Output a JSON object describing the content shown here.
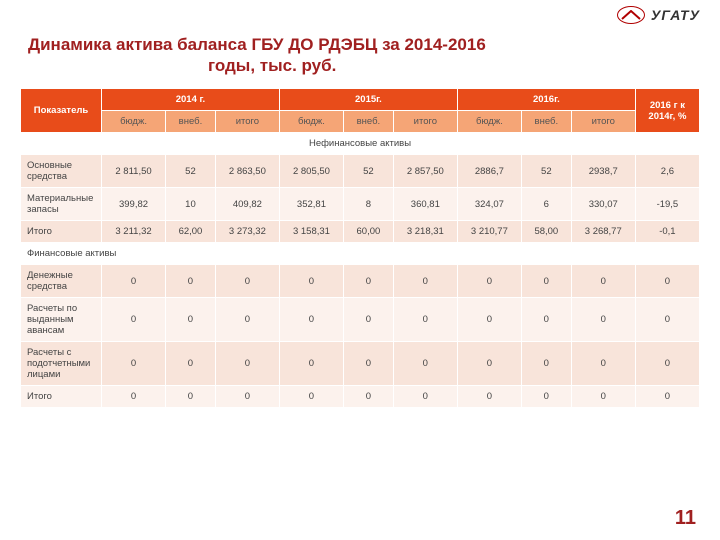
{
  "brand": {
    "text": "УГАТУ"
  },
  "title": {
    "line1": "Динамика актива баланса ГБУ ДО РДЭБЦ за 2014-2016",
    "line2": "годы,  тыс. руб."
  },
  "page_number": "11",
  "colors": {
    "header_bg": "#e84c1a",
    "subheader_bg": "#f5a576",
    "band_a": "#f8e4da",
    "band_b": "#fcf2ed",
    "title_color": "#a02020",
    "text_color": "#444444"
  },
  "table": {
    "header_row1": {
      "indicator": "Показатель",
      "y2014": "2014 г.",
      "y2015": "2015г.",
      "y2016": "2016г.",
      "ratio": "2016 г к 2014г, %"
    },
    "header_row2": {
      "c0": "бюдж.",
      "c1": "внеб.",
      "c2": "итого",
      "c3": "бюдж.",
      "c4": "внеб.",
      "c5": "итого",
      "c6": "бюдж.",
      "c7": "внеб.",
      "c8": "итого"
    },
    "section1": "Нефинансовые активы",
    "rows1": [
      {
        "label": "Основные средства",
        "v": [
          "2 811,50",
          "52",
          "2 863,50",
          "2 805,50",
          "52",
          "2 857,50",
          "2886,7",
          "52",
          "2938,7",
          "2,6"
        ],
        "band": "a"
      },
      {
        "label": "Материальные запасы",
        "v": [
          "399,82",
          "10",
          "409,82",
          "352,81",
          "8",
          "360,81",
          "324,07",
          "6",
          "330,07",
          "-19,5"
        ],
        "band": "b"
      },
      {
        "label": "Итого",
        "v": [
          "3 211,32",
          "62,00",
          "3 273,32",
          "3 158,31",
          "60,00",
          "3 218,31",
          "3 210,77",
          "58,00",
          "3 268,77",
          "-0,1"
        ],
        "band": "a"
      }
    ],
    "section2": "Финансовые активы",
    "rows2": [
      {
        "label": "Денежные средства",
        "v": [
          "0",
          "0",
          "0",
          "0",
          "0",
          "0",
          "0",
          "0",
          "0",
          "0"
        ],
        "band": "a"
      },
      {
        "label": "Расчеты по выданным авансам",
        "v": [
          "0",
          "0",
          "0",
          "0",
          "0",
          "0",
          "0",
          "0",
          "0",
          "0"
        ],
        "band": "b"
      },
      {
        "label": "Расчеты с подотчетными лицами",
        "v": [
          "0",
          "0",
          "0",
          "0",
          "0",
          "0",
          "0",
          "0",
          "0",
          "0"
        ],
        "band": "a"
      },
      {
        "label": "Итого",
        "v": [
          "0",
          "0",
          "0",
          "0",
          "0",
          "0",
          "0",
          "0",
          "0",
          "0"
        ],
        "band": "b"
      }
    ]
  }
}
